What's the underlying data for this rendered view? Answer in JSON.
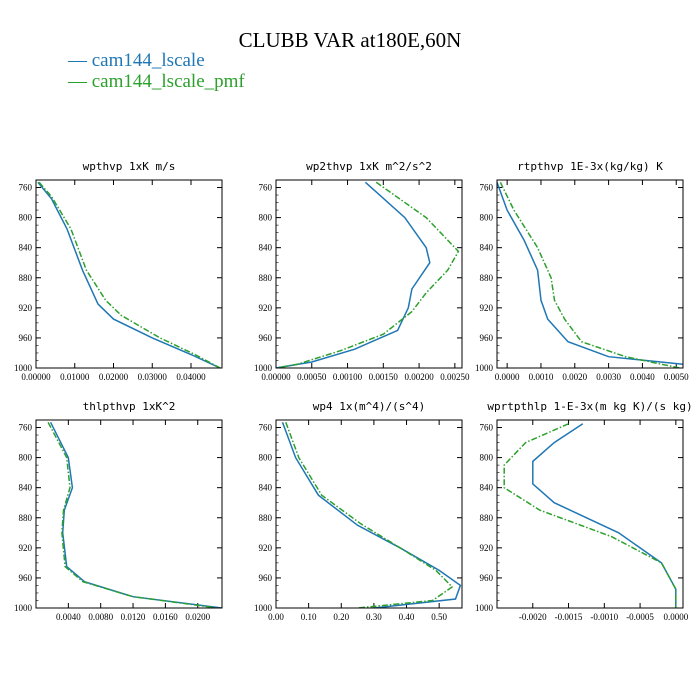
{
  "title": "CLUBB VAR at180E,60N",
  "legend": [
    {
      "dash": "—",
      "label": "cam144_lscale",
      "color": "#1f77b4"
    },
    {
      "dash": "—",
      "label": "cam144_lscale_pmf",
      "color": "#2ca02c"
    }
  ],
  "chart_data": [
    {
      "type": "line",
      "title": "wpthvp  1xK m/s",
      "xlim": [
        0,
        0.048
      ],
      "ylim": [
        1000,
        750
      ],
      "xticks": [
        0,
        0.01,
        0.02,
        0.03,
        0.04
      ],
      "xtick_labels": [
        "0.00000",
        "0.01000",
        "0.02000",
        "0.03000",
        "0.04000"
      ],
      "yticks": [
        760,
        800,
        840,
        880,
        920,
        960,
        1000
      ],
      "series": [
        {
          "name": "cam144_lscale",
          "color": "#1f77b4",
          "dash": "solid",
          "points": [
            [
              0.0005,
              753
            ],
            [
              0.004,
              775
            ],
            [
              0.008,
              815
            ],
            [
              0.012,
              870
            ],
            [
              0.016,
              915
            ],
            [
              0.02,
              935
            ],
            [
              0.03,
              960
            ],
            [
              0.04,
              982
            ],
            [
              0.0475,
              1000
            ]
          ]
        },
        {
          "name": "cam144_lscale_pmf",
          "color": "#2ca02c",
          "dash": "dashed",
          "points": [
            [
              0.0008,
              753
            ],
            [
              0.004,
              772
            ],
            [
              0.009,
              815
            ],
            [
              0.013,
              870
            ],
            [
              0.018,
              910
            ],
            [
              0.022,
              930
            ],
            [
              0.032,
              960
            ],
            [
              0.041,
              982
            ],
            [
              0.0475,
              1000
            ]
          ]
        }
      ]
    },
    {
      "type": "line",
      "title": "wp2thvp  1xK m^2/s^2",
      "xlim": [
        0,
        0.0026
      ],
      "ylim": [
        1000,
        750
      ],
      "xticks": [
        0,
        0.0005,
        0.001,
        0.0015,
        0.002,
        0.0025
      ],
      "xtick_labels": [
        "0.00000",
        "0.00050",
        "0.00100",
        "0.00150",
        "0.00200",
        "0.00250"
      ],
      "yticks": [
        760,
        800,
        840,
        880,
        920,
        960,
        1000
      ],
      "series": [
        {
          "name": "cam144_lscale",
          "color": "#1f77b4",
          "dash": "solid",
          "points": [
            [
              0.00125,
              753
            ],
            [
              0.0018,
              800
            ],
            [
              0.0021,
              840
            ],
            [
              0.00215,
              860
            ],
            [
              0.0019,
              895
            ],
            [
              0.00185,
              920
            ],
            [
              0.0017,
              950
            ],
            [
              0.0011,
              975
            ],
            [
              0.0005,
              992
            ],
            [
              0.0,
              1000
            ]
          ]
        },
        {
          "name": "cam144_lscale_pmf",
          "color": "#2ca02c",
          "dash": "dashed",
          "points": [
            [
              0.0014,
              753
            ],
            [
              0.0021,
              800
            ],
            [
              0.00255,
              845
            ],
            [
              0.0024,
              870
            ],
            [
              0.0021,
              900
            ],
            [
              0.0019,
              925
            ],
            [
              0.0015,
              955
            ],
            [
              0.0009,
              977
            ],
            [
              0.0003,
              995
            ],
            [
              0.0,
              1000
            ]
          ]
        }
      ]
    },
    {
      "type": "line",
      "title": "rtpthvp  1E-3x(kg/kg) K",
      "xlim": [
        -0.0003,
        0.0052
      ],
      "ylim": [
        1000,
        750
      ],
      "xticks": [
        0,
        0.001,
        0.002,
        0.003,
        0.004,
        0.005
      ],
      "xtick_labels": [
        "0.0000",
        "0.0010",
        "0.0020",
        "0.0030",
        "0.0040",
        "0.0050"
      ],
      "yticks": [
        760,
        800,
        840,
        880,
        920,
        960,
        1000
      ],
      "series": [
        {
          "name": "cam144_lscale",
          "color": "#1f77b4",
          "dash": "solid",
          "points": [
            [
              -0.0003,
              753
            ],
            [
              0.0,
              790
            ],
            [
              0.0005,
              830
            ],
            [
              0.0009,
              870
            ],
            [
              0.001,
              910
            ],
            [
              0.0012,
              935
            ],
            [
              0.0018,
              965
            ],
            [
              0.003,
              985
            ],
            [
              0.0052,
              995
            ]
          ]
        },
        {
          "name": "cam144_lscale_pmf",
          "color": "#2ca02c",
          "dash": "dashed",
          "points": [
            [
              -0.0002,
              753
            ],
            [
              0.0002,
              790
            ],
            [
              0.0009,
              840
            ],
            [
              0.0013,
              880
            ],
            [
              0.0014,
              910
            ],
            [
              0.0017,
              935
            ],
            [
              0.0022,
              965
            ],
            [
              0.0035,
              985
            ],
            [
              0.0051,
              1000
            ]
          ]
        }
      ]
    },
    {
      "type": "line",
      "title": "thlpthvp  1xK^2",
      "xlim": [
        0.0,
        0.023
      ],
      "ylim": [
        1000,
        750
      ],
      "xticks": [
        0.004,
        0.008,
        0.012,
        0.016,
        0.02
      ],
      "xtick_labels": [
        "0.0040",
        "0.0080",
        "0.0120",
        "0.0160",
        "0.0200"
      ],
      "yticks": [
        760,
        800,
        840,
        880,
        920,
        960,
        1000
      ],
      "series": [
        {
          "name": "cam144_lscale",
          "color": "#1f77b4",
          "dash": "solid",
          "points": [
            [
              0.0018,
              753
            ],
            [
              0.004,
              800
            ],
            [
              0.0045,
              840
            ],
            [
              0.0035,
              870
            ],
            [
              0.0033,
              900
            ],
            [
              0.0038,
              945
            ],
            [
              0.006,
              965
            ],
            [
              0.012,
              985
            ],
            [
              0.023,
              1000
            ]
          ]
        },
        {
          "name": "cam144_lscale_pmf",
          "color": "#2ca02c",
          "dash": "dashed",
          "points": [
            [
              0.0015,
              753
            ],
            [
              0.0038,
              800
            ],
            [
              0.0042,
              840
            ],
            [
              0.0034,
              870
            ],
            [
              0.0032,
              900
            ],
            [
              0.0036,
              945
            ],
            [
              0.0058,
              965
            ],
            [
              0.012,
              985
            ],
            [
              0.0225,
              1000
            ]
          ]
        }
      ]
    },
    {
      "type": "line",
      "title": "wp4  1x(m^4)/(s^4)",
      "xlim": [
        0,
        0.57
      ],
      "ylim": [
        1000,
        750
      ],
      "xticks": [
        0,
        0.1,
        0.2,
        0.3,
        0.4,
        0.5
      ],
      "xtick_labels": [
        "0.00",
        "0.10",
        "0.20",
        "0.30",
        "0.40",
        "0.50"
      ],
      "yticks": [
        760,
        800,
        840,
        880,
        920,
        960,
        1000
      ],
      "series": [
        {
          "name": "cam144_lscale",
          "color": "#1f77b4",
          "dash": "solid",
          "points": [
            [
              0.02,
              753
            ],
            [
              0.06,
              800
            ],
            [
              0.13,
              850
            ],
            [
              0.25,
              890
            ],
            [
              0.38,
              920
            ],
            [
              0.5,
              950
            ],
            [
              0.565,
              970
            ],
            [
              0.55,
              988
            ],
            [
              0.3,
              1000
            ]
          ]
        },
        {
          "name": "cam144_lscale_pmf",
          "color": "#2ca02c",
          "dash": "dashed",
          "points": [
            [
              0.03,
              753
            ],
            [
              0.07,
              800
            ],
            [
              0.14,
              850
            ],
            [
              0.26,
              888
            ],
            [
              0.38,
              920
            ],
            [
              0.49,
              950
            ],
            [
              0.54,
              972
            ],
            [
              0.48,
              990
            ],
            [
              0.25,
              1000
            ]
          ]
        }
      ]
    },
    {
      "type": "line",
      "title": "wprtpthlp  1-E-3x(m kg K)/(s kg)",
      "xlim": [
        -0.0025,
        0.0001
      ],
      "ylim": [
        1000,
        750
      ],
      "xticks": [
        -0.002,
        -0.0015,
        -0.001,
        -0.0005,
        0
      ],
      "xtick_labels": [
        "-0.0020",
        "-0.0015",
        "-0.0010",
        "-0.0005",
        "0.0000"
      ],
      "yticks": [
        760,
        800,
        840,
        880,
        920,
        960,
        1000
      ],
      "series": [
        {
          "name": "cam144_lscale",
          "color": "#1f77b4",
          "dash": "solid",
          "points": [
            [
              -0.0013,
              755
            ],
            [
              -0.0017,
              780
            ],
            [
              -0.002,
              805
            ],
            [
              -0.002,
              835
            ],
            [
              -0.0017,
              860
            ],
            [
              -0.0008,
              900
            ],
            [
              -0.0002,
              940
            ],
            [
              0.0,
              975
            ],
            [
              0.0,
              1000
            ]
          ]
        },
        {
          "name": "cam144_lscale_pmf",
          "color": "#2ca02c",
          "dash": "dashed",
          "points": [
            [
              -0.0015,
              755
            ],
            [
              -0.0021,
              780
            ],
            [
              -0.0024,
              810
            ],
            [
              -0.0024,
              840
            ],
            [
              -0.0019,
              870
            ],
            [
              -0.0009,
              905
            ],
            [
              -0.0002,
              940
            ],
            [
              0.0,
              975
            ],
            [
              0.0,
              1000
            ]
          ]
        }
      ]
    }
  ]
}
